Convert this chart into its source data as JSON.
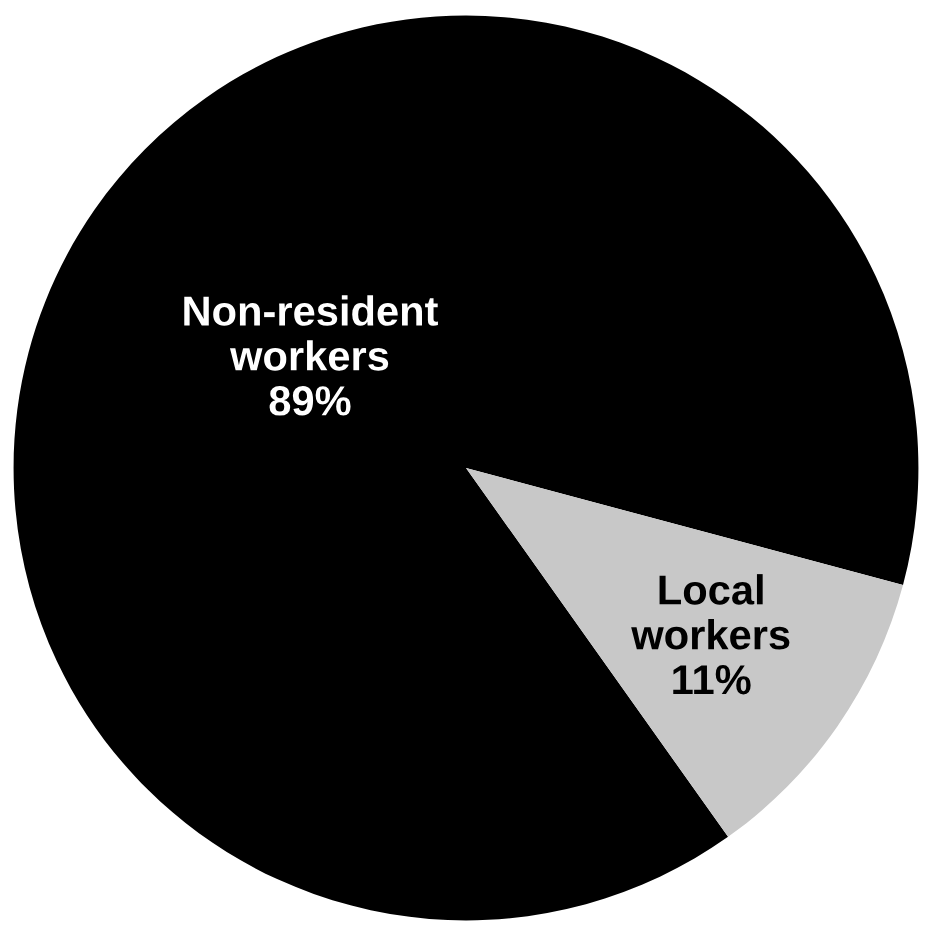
{
  "chart_data": {
    "type": "pie",
    "categories": [
      "Non-resident workers",
      "Local workers"
    ],
    "values": [
      89,
      11
    ],
    "colors": [
      "#000000",
      "#c8c8c8"
    ],
    "value_labels": [
      "89%",
      "11%"
    ]
  }
}
